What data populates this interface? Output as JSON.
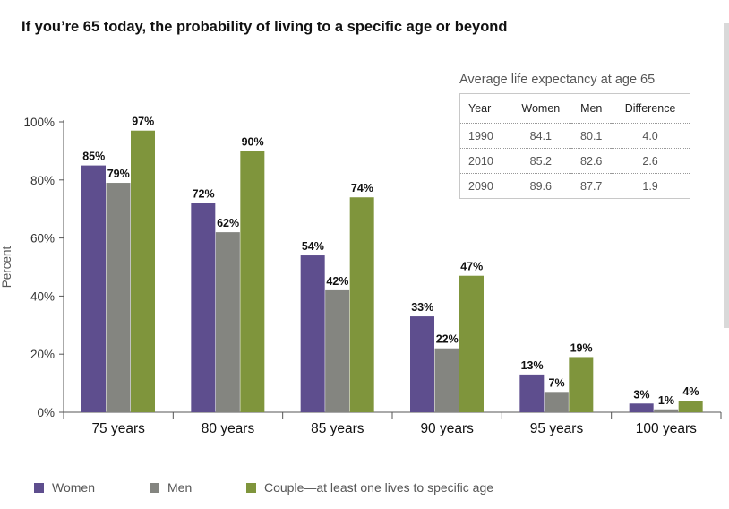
{
  "chart_data": {
    "type": "bar",
    "title": "If you’re 65 today, the probability of living to a specific age or beyond",
    "ylabel": "Percent",
    "xlabel": "",
    "ylim": [
      0,
      100
    ],
    "yticks": [
      0,
      20,
      40,
      60,
      80,
      100
    ],
    "ytick_labels": [
      "0%",
      "20%",
      "40%",
      "60%",
      "80%",
      "100%"
    ],
    "categories": [
      "75 years",
      "80 years",
      "85 years",
      "90 years",
      "95 years",
      "100 years"
    ],
    "series": [
      {
        "name": "Women",
        "color": "#5e4e8e",
        "values": [
          85,
          72,
          54,
          33,
          13,
          3
        ],
        "labels": [
          "85%",
          "72%",
          "54%",
          "33%",
          "13%",
          "3%"
        ]
      },
      {
        "name": "Men",
        "color": "#848580",
        "values": [
          79,
          62,
          42,
          22,
          7,
          1
        ],
        "labels": [
          "79%",
          "62%",
          "42%",
          "22%",
          "7%",
          "1%"
        ]
      },
      {
        "name": "Couple—at least one lives to specific age",
        "color": "#7f953c",
        "values": [
          97,
          90,
          74,
          47,
          19,
          4
        ],
        "labels": [
          "97%",
          "90%",
          "74%",
          "47%",
          "19%",
          "4%"
        ]
      }
    ],
    "grid": false,
    "legend_position": "bottom"
  },
  "inset_table": {
    "title": "Average life expectancy at age 65",
    "headers": [
      "Year",
      "Women",
      "Men",
      "Difference"
    ],
    "rows": [
      [
        "1990",
        "84.1",
        "80.1",
        "4.0"
      ],
      [
        "2010",
        "85.2",
        "82.6",
        "2.6"
      ],
      [
        "2090",
        "89.6",
        "87.7",
        "1.9"
      ]
    ]
  }
}
